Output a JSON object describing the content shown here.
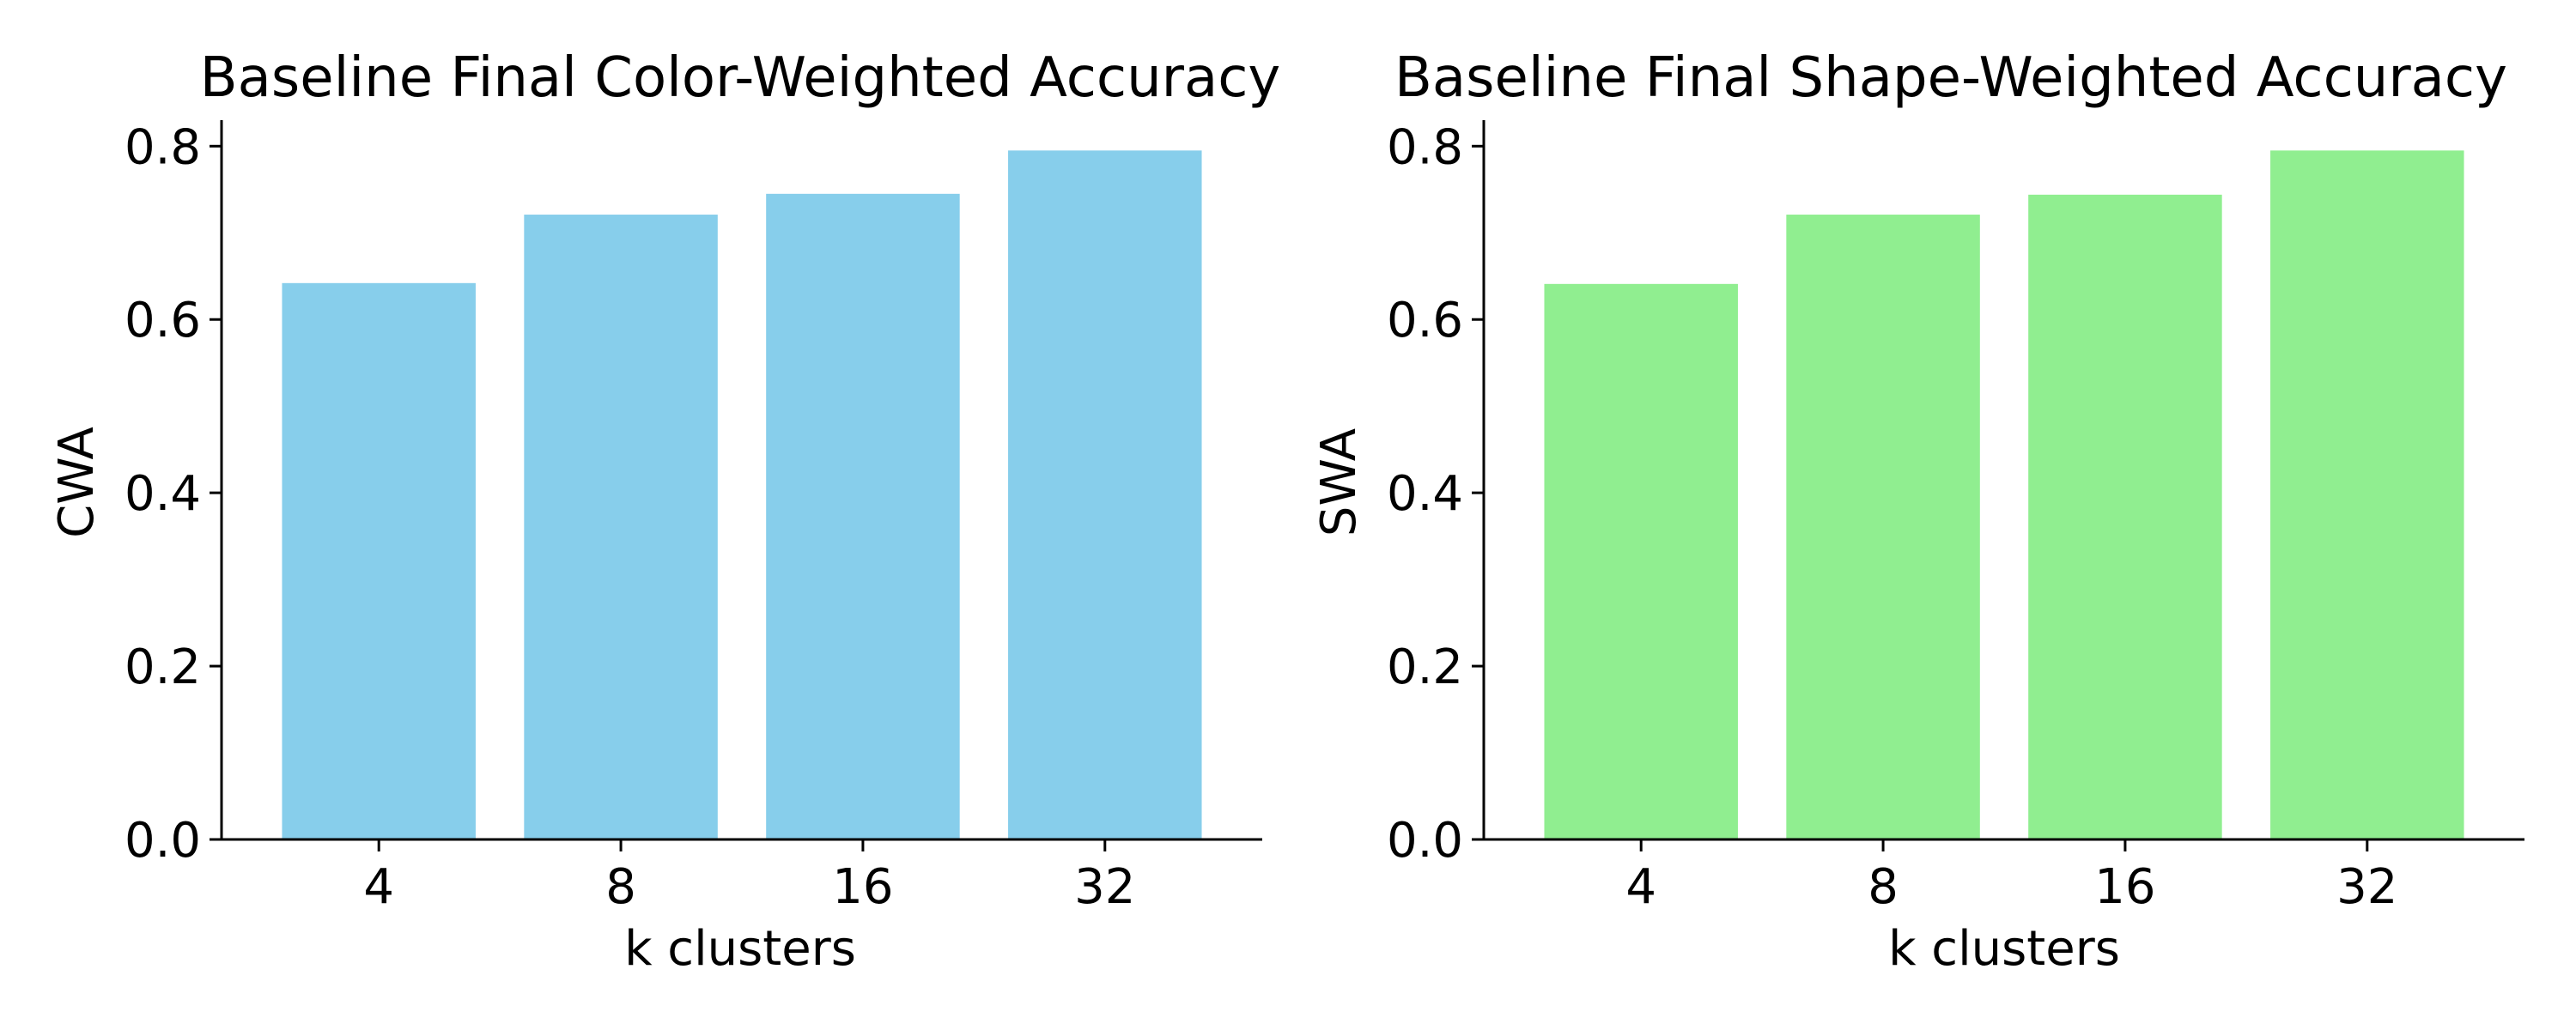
{
  "chart_data": [
    {
      "type": "bar",
      "title": "Baseline Final Color-Weighted Accuracy",
      "xlabel": "k clusters",
      "ylabel": "CWA",
      "categories": [
        "4",
        "8",
        "16",
        "32"
      ],
      "values": [
        0.642,
        0.721,
        0.745,
        0.795
      ],
      "ylim": [
        0,
        0.83
      ],
      "yticks": [
        "0.0",
        "0.2",
        "0.4",
        "0.6",
        "0.8"
      ],
      "color": "#87CEEB",
      "grid": false
    },
    {
      "type": "bar",
      "title": "Baseline Final Shape-Weighted Accuracy",
      "xlabel": "k clusters",
      "ylabel": "SWA",
      "categories": [
        "4",
        "8",
        "16",
        "32"
      ],
      "values": [
        0.641,
        0.721,
        0.744,
        0.795
      ],
      "ylim": [
        0,
        0.83
      ],
      "yticks": [
        "0.0",
        "0.2",
        "0.4",
        "0.6",
        "0.8"
      ],
      "color": "#90EE90",
      "grid": false
    }
  ]
}
